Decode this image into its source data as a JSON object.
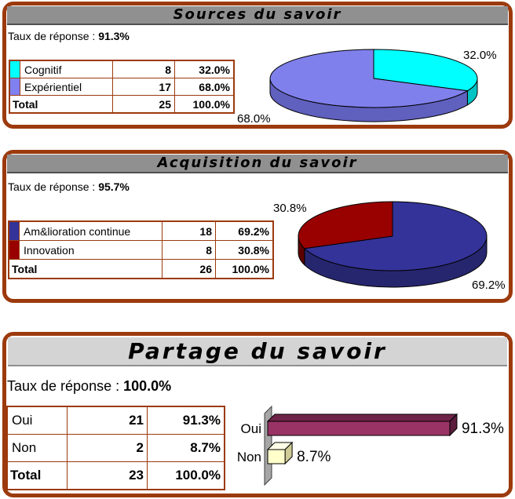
{
  "colors": {
    "panel_border": "#9C3A0E",
    "header_bg": "#909090",
    "header_bg_light": "#D4D4D4",
    "table_border": "#9C3A0E",
    "text": "#000000"
  },
  "panels": [
    {
      "title": "Sources du savoir",
      "response_label": "Taux de réponse : ",
      "response_value": "91.3%",
      "table": {
        "rows": [
          {
            "label": "Cognitif",
            "value": "8",
            "pct": "32.0%",
            "color": "#00FFFF"
          },
          {
            "label": "Expérientiel",
            "value": "17",
            "pct": "68.0%",
            "color": "#8080F0"
          }
        ],
        "total": {
          "label": "Total",
          "value": "25",
          "pct": "100.0%"
        }
      }
    },
    {
      "title": "Acquisition du savoir",
      "response_label": "Taux de réponse : ",
      "response_value": "95.7%",
      "table": {
        "rows": [
          {
            "label": "Am&lioration continue",
            "value": "18",
            "pct": "69.2%",
            "color": "#333399"
          },
          {
            "label": "Innovation",
            "value": "8",
            "pct": "30.8%",
            "color": "#990000"
          }
        ],
        "total": {
          "label": "Total",
          "value": "26",
          "pct": "100.0%"
        }
      }
    },
    {
      "title": "Partage du savoir",
      "response_label": "Taux de réponse : ",
      "response_value": "100.0%",
      "table": {
        "rows": [
          {
            "label": "Oui",
            "value": "21",
            "pct": "91.3%"
          },
          {
            "label": "Non",
            "value": "2",
            "pct": "8.7%"
          }
        ],
        "total": {
          "label": "Total",
          "value": "23",
          "pct": "100.0%"
        }
      }
    }
  ],
  "chart_data": [
    {
      "type": "pie",
      "style": "3d-pie",
      "title": "Sources du savoir",
      "labels": [
        "Cognitif",
        "Expérientiel"
      ],
      "values": [
        8,
        17
      ],
      "fractions": [
        0.32,
        0.68
      ],
      "percent_labels": [
        "32.0%",
        "68.0%"
      ],
      "top_colors": [
        "#00FFFF",
        "#8080EC"
      ],
      "side_colors": [
        "#00C4C4",
        "#6060BF"
      ],
      "start_angle_deg": -90,
      "clockwise": true,
      "legend": "none"
    },
    {
      "type": "pie",
      "style": "3d-pie",
      "title": "Acquisition du savoir",
      "labels": [
        "Am&lioration continue",
        "Innovation"
      ],
      "values": [
        18,
        8
      ],
      "fractions": [
        0.692,
        0.308
      ],
      "percent_labels": [
        "69.2%",
        "30.8%"
      ],
      "top_colors": [
        "#333399",
        "#990000"
      ],
      "side_colors": [
        "#26266F",
        "#5E0000"
      ],
      "start_angle_deg": -90,
      "clockwise": true,
      "legend": "none"
    },
    {
      "type": "bar",
      "style": "3d-bar",
      "orientation": "horizontal",
      "title": "Partage du savoir",
      "categories": [
        "Oui",
        "Non"
      ],
      "values": [
        91.3,
        8.7
      ],
      "value_labels": [
        "91.3%",
        "8.7%"
      ],
      "front_colors": [
        "#993366",
        "#FFFFCC"
      ],
      "top_colors": [
        "#6E2449",
        "#FFFFE8"
      ],
      "side_colors": [
        "#5C1E3D",
        "#CFCB96"
      ],
      "xlim": [
        0,
        100
      ],
      "legend": "none"
    }
  ]
}
